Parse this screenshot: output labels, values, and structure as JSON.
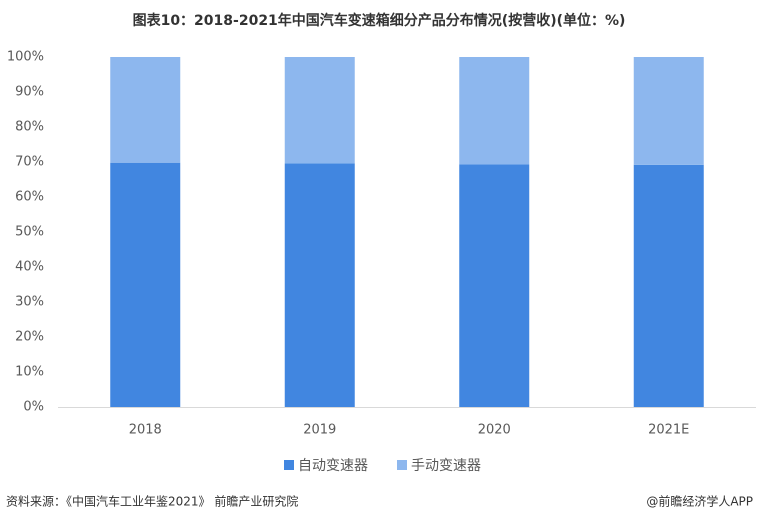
{
  "chart_data": {
    "type": "stacked_bar",
    "title": "图表10：2018-2021年中国汽车变速箱细分产品分布情况(按营收)(单位：%)",
    "categories": [
      "2018",
      "2019",
      "2020",
      "2021E"
    ],
    "series": [
      {
        "name": "自动变速器",
        "color": "#4186e0",
        "values": [
          69.8,
          69.6,
          69.3,
          69.2
        ]
      },
      {
        "name": "手动变速器",
        "color": "#8db7ee",
        "values": [
          30.2,
          30.4,
          30.7,
          30.8
        ]
      }
    ],
    "ylim": [
      0,
      100
    ],
    "yticks": [
      {
        "value": 0,
        "label": "0%"
      },
      {
        "value": 10,
        "label": "10%"
      },
      {
        "value": 20,
        "label": "20%"
      },
      {
        "value": 30,
        "label": "30%"
      },
      {
        "value": 40,
        "label": "40%"
      },
      {
        "value": 50,
        "label": "50%"
      },
      {
        "value": 60,
        "label": "60%"
      },
      {
        "value": 70,
        "label": "70%"
      },
      {
        "value": 80,
        "label": "80%"
      },
      {
        "value": 90,
        "label": "90%"
      },
      {
        "value": 100,
        "label": "100%"
      }
    ],
    "grid": false,
    "source": "资料来源：《中国汽车工业年鉴2021》 前瞻产业研究院",
    "credit": "@前瞻经济学人APP"
  }
}
